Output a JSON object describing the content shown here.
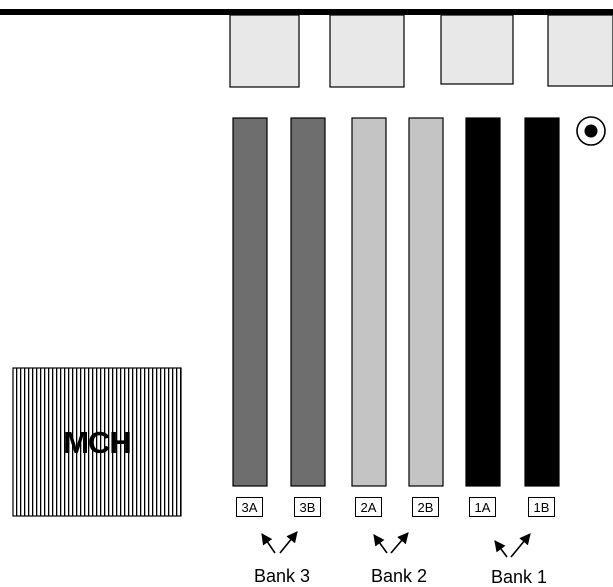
{
  "mch": {
    "label": "MCH"
  },
  "slots": [
    {
      "label": "3A",
      "bank": "3",
      "color": "#6e6e6e"
    },
    {
      "label": "3B",
      "bank": "3",
      "color": "#6e6e6e"
    },
    {
      "label": "2A",
      "bank": "2",
      "color": "#c4c4c4"
    },
    {
      "label": "2B",
      "bank": "2",
      "color": "#c4c4c4"
    },
    {
      "label": "1A",
      "bank": "1",
      "color": "#000000"
    },
    {
      "label": "1B",
      "bank": "1",
      "color": "#000000"
    }
  ],
  "banks": [
    {
      "label": "Bank 3"
    },
    {
      "label": "Bank 2"
    },
    {
      "label": "Bank 1"
    }
  ],
  "colors": {
    "connector_fill": "#e8e8e8",
    "bank3_slot": "#6e6e6e",
    "bank2_slot": "#c4c4c4",
    "bank1_slot": "#000000",
    "mch_stripes": "#000000"
  },
  "icons": [
    "pin1-marker-icon",
    "arrow-icon"
  ]
}
